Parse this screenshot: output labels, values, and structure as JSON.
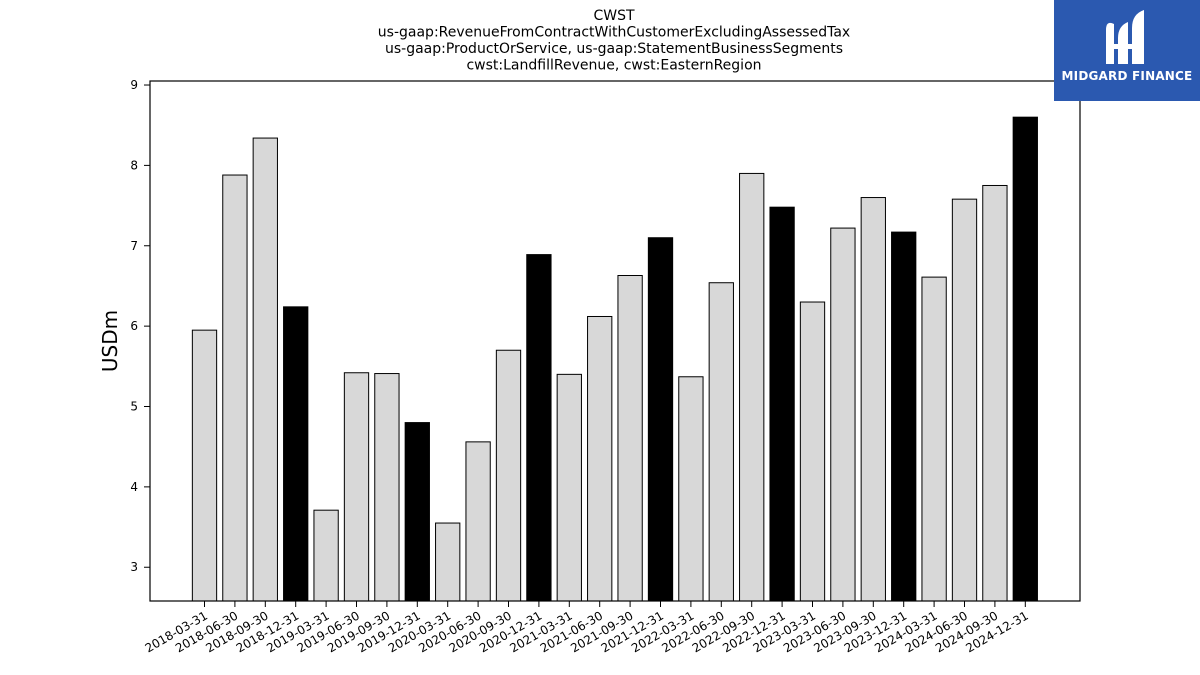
{
  "chart_data": {
    "type": "bar",
    "title_lines": [
      "CWST",
      "us-gaap:RevenueFromContractWithCustomerExcludingAssessedTax",
      "us-gaap:ProductOrService, us-gaap:StatementBusinessSegments",
      "cwst:LandfillRevenue, cwst:EasternRegion"
    ],
    "ylabel": "USDm",
    "ylim": [
      2.58,
      9.05
    ],
    "yticks": [
      3,
      4,
      5,
      6,
      7,
      8,
      9
    ],
    "grid": false,
    "categories": [
      "2018-03-31",
      "2018-06-30",
      "2018-09-30",
      "2018-12-31",
      "2019-03-31",
      "2019-06-30",
      "2019-09-30",
      "2019-12-31",
      "2020-03-31",
      "2020-06-30",
      "2020-09-30",
      "2020-12-31",
      "2021-03-31",
      "2021-06-30",
      "2021-09-30",
      "2021-12-31",
      "2022-03-31",
      "2022-06-30",
      "2022-09-30",
      "2022-12-31",
      "2023-03-31",
      "2023-06-30",
      "2023-09-30",
      "2023-12-31",
      "2024-03-31",
      "2024-06-30",
      "2024-09-30",
      "2024-12-31"
    ],
    "values": [
      5.95,
      7.88,
      8.34,
      6.24,
      3.71,
      5.42,
      5.41,
      4.8,
      3.55,
      4.56,
      5.7,
      6.89,
      5.4,
      6.12,
      6.63,
      7.1,
      5.37,
      6.54,
      7.9,
      7.48,
      6.3,
      7.22,
      7.6,
      7.17,
      6.61,
      7.58,
      7.75,
      8.6
    ],
    "colors": {
      "quarter": "#d8d8d8",
      "year_end": "#000000",
      "edge": "#000000"
    }
  },
  "logo": {
    "text": "MIDGARD FINANCE"
  }
}
